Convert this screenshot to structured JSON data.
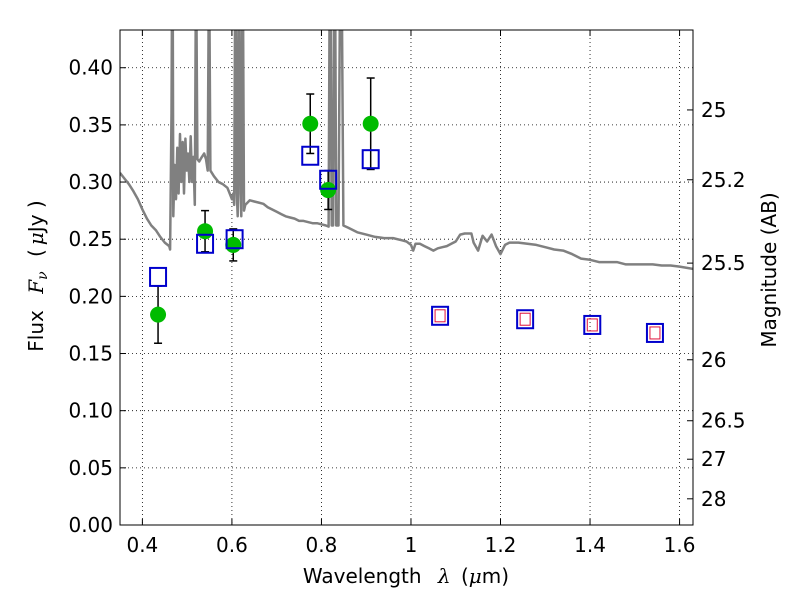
{
  "chart_data": {
    "type": "scatter",
    "title": "",
    "xlabel_prefix": "Wavelength",
    "xlabel_symbol": "λ",
    "xlabel_unit_open": "(",
    "xlabel_unit_mu": "μ",
    "xlabel_unit_rest": "m)",
    "ylabel_prefix": "Flux",
    "ylabel_symbol": "F",
    "ylabel_subscript": "ν",
    "ylabel_unit_open": "(",
    "ylabel_unit_mu": "μ",
    "ylabel_unit_rest": "Jy )",
    "y2label": "Magnitude (AB)",
    "xlim": [
      0.35,
      1.63
    ],
    "ylim": [
      0.0,
      0.433
    ],
    "grid": true,
    "x_ticks": [
      0.4,
      0.6,
      0.8,
      1.0,
      1.2,
      1.4,
      1.6
    ],
    "x_tick_labels": [
      "0.4",
      "0.6",
      "0.8",
      "1",
      "1.2",
      "1.4",
      "1.6"
    ],
    "y_ticks": [
      0.0,
      0.05,
      0.1,
      0.15,
      0.2,
      0.25,
      0.3,
      0.35,
      0.4
    ],
    "y_tick_labels": [
      "0.00",
      "0.05",
      "0.10",
      "0.15",
      "0.20",
      "0.25",
      "0.30",
      "0.35",
      "0.40"
    ],
    "y2_ticks": [
      25,
      25.2,
      25.5,
      26,
      26.5,
      27,
      28
    ],
    "y2_tick_labels": [
      "25",
      "25.2",
      "25.5",
      "26",
      "26.5",
      "27",
      "28"
    ],
    "colors": {
      "observed": "#00bb00",
      "model_box": "#0000cc",
      "model_inner": "#e0103a",
      "spectrum": "#808080"
    },
    "observed": [
      {
        "x": 0.435,
        "y": 0.184,
        "err": 0.025
      },
      {
        "x": 0.54,
        "y": 0.257,
        "err": 0.018
      },
      {
        "x": 0.603,
        "y": 0.245,
        "err": 0.014
      },
      {
        "x": 0.775,
        "y": 0.351,
        "err": 0.026
      },
      {
        "x": 0.815,
        "y": 0.293,
        "err": 0.017
      },
      {
        "x": 0.91,
        "y": 0.351,
        "err": 0.04
      }
    ],
    "model_photometry": [
      {
        "x": 0.435,
        "y": 0.217
      },
      {
        "x": 0.54,
        "y": 0.246
      },
      {
        "x": 0.606,
        "y": 0.25
      },
      {
        "x": 0.775,
        "y": 0.323
      },
      {
        "x": 0.815,
        "y": 0.302
      },
      {
        "x": 0.91,
        "y": 0.32
      },
      {
        "x": 1.065,
        "y": 0.183
      },
      {
        "x": 1.255,
        "y": 0.18
      },
      {
        "x": 1.405,
        "y": 0.175
      },
      {
        "x": 1.545,
        "y": 0.168
      }
    ],
    "model_inner_points": [
      {
        "x": 1.065,
        "y": 0.183
      },
      {
        "x": 1.255,
        "y": 0.18
      },
      {
        "x": 1.405,
        "y": 0.175
      },
      {
        "x": 1.545,
        "y": 0.168
      }
    ],
    "spectrum": [
      [
        0.35,
        0.308
      ],
      [
        0.36,
        0.303
      ],
      [
        0.37,
        0.298
      ],
      [
        0.38,
        0.292
      ],
      [
        0.39,
        0.285
      ],
      [
        0.4,
        0.276
      ],
      [
        0.41,
        0.268
      ],
      [
        0.42,
        0.262
      ],
      [
        0.43,
        0.258
      ],
      [
        0.44,
        0.252
      ],
      [
        0.45,
        0.247
      ],
      [
        0.46,
        0.244
      ],
      [
        0.462,
        0.241
      ],
      [
        0.465,
        0.36
      ],
      [
        0.466,
        0.44
      ],
      [
        0.468,
        0.44
      ],
      [
        0.469,
        0.27
      ],
      [
        0.472,
        0.315
      ],
      [
        0.475,
        0.285
      ],
      [
        0.478,
        0.33
      ],
      [
        0.481,
        0.29
      ],
      [
        0.484,
        0.342
      ],
      [
        0.487,
        0.3
      ],
      [
        0.49,
        0.335
      ],
      [
        0.493,
        0.29
      ],
      [
        0.496,
        0.338
      ],
      [
        0.499,
        0.31
      ],
      [
        0.502,
        0.325
      ],
      [
        0.505,
        0.3
      ],
      [
        0.508,
        0.34
      ],
      [
        0.511,
        0.3
      ],
      [
        0.514,
        0.322
      ],
      [
        0.517,
        0.28
      ],
      [
        0.519,
        0.44
      ],
      [
        0.521,
        0.44
      ],
      [
        0.523,
        0.32
      ],
      [
        0.527,
        0.318
      ],
      [
        0.533,
        0.322
      ],
      [
        0.538,
        0.325
      ],
      [
        0.542,
        0.32
      ],
      [
        0.546,
        0.31
      ],
      [
        0.548,
        0.44
      ],
      [
        0.55,
        0.44
      ],
      [
        0.552,
        0.31
      ],
      [
        0.56,
        0.305
      ],
      [
        0.57,
        0.3
      ],
      [
        0.58,
        0.298
      ],
      [
        0.59,
        0.295
      ],
      [
        0.595,
        0.29
      ],
      [
        0.6,
        0.285
      ],
      [
        0.603,
        0.29
      ],
      [
        0.605,
        0.28
      ],
      [
        0.607,
        0.44
      ],
      [
        0.609,
        0.44
      ],
      [
        0.611,
        0.29
      ],
      [
        0.613,
        0.27
      ],
      [
        0.615,
        0.44
      ],
      [
        0.617,
        0.44
      ],
      [
        0.619,
        0.29
      ],
      [
        0.621,
        0.27
      ],
      [
        0.623,
        0.44
      ],
      [
        0.625,
        0.44
      ],
      [
        0.627,
        0.275
      ],
      [
        0.63,
        0.28
      ],
      [
        0.64,
        0.284
      ],
      [
        0.65,
        0.283
      ],
      [
        0.66,
        0.282
      ],
      [
        0.67,
        0.281
      ],
      [
        0.68,
        0.278
      ],
      [
        0.69,
        0.276
      ],
      [
        0.7,
        0.274
      ],
      [
        0.71,
        0.272
      ],
      [
        0.72,
        0.27
      ],
      [
        0.73,
        0.269
      ],
      [
        0.74,
        0.268
      ],
      [
        0.75,
        0.266
      ],
      [
        0.76,
        0.266
      ],
      [
        0.77,
        0.265
      ],
      [
        0.78,
        0.264
      ],
      [
        0.79,
        0.264
      ],
      [
        0.8,
        0.263
      ],
      [
        0.81,
        0.262
      ],
      [
        0.816,
        0.261
      ],
      [
        0.818,
        0.44
      ],
      [
        0.821,
        0.44
      ],
      [
        0.823,
        0.262
      ],
      [
        0.826,
        0.262
      ],
      [
        0.828,
        0.44
      ],
      [
        0.831,
        0.44
      ],
      [
        0.833,
        0.262
      ],
      [
        0.838,
        0.262
      ],
      [
        0.841,
        0.44
      ],
      [
        0.846,
        0.44
      ],
      [
        0.849,
        0.262
      ],
      [
        0.86,
        0.26
      ],
      [
        0.88,
        0.256
      ],
      [
        0.9,
        0.254
      ],
      [
        0.92,
        0.252
      ],
      [
        0.94,
        0.251
      ],
      [
        0.96,
        0.251
      ],
      [
        0.98,
        0.249
      ],
      [
        0.99,
        0.248
      ],
      [
        1.0,
        0.245
      ],
      [
        1.005,
        0.24
      ],
      [
        1.01,
        0.246
      ],
      [
        1.02,
        0.246
      ],
      [
        1.03,
        0.244
      ],
      [
        1.04,
        0.242
      ],
      [
        1.05,
        0.24
      ],
      [
        1.06,
        0.242
      ],
      [
        1.07,
        0.243
      ],
      [
        1.08,
        0.244
      ],
      [
        1.09,
        0.246
      ],
      [
        1.1,
        0.248
      ],
      [
        1.11,
        0.254
      ],
      [
        1.12,
        0.255
      ],
      [
        1.135,
        0.255
      ],
      [
        1.14,
        0.247
      ],
      [
        1.15,
        0.24
      ],
      [
        1.16,
        0.253
      ],
      [
        1.17,
        0.248
      ],
      [
        1.18,
        0.254
      ],
      [
        1.19,
        0.244
      ],
      [
        1.2,
        0.237
      ],
      [
        1.21,
        0.245
      ],
      [
        1.22,
        0.247
      ],
      [
        1.24,
        0.247
      ],
      [
        1.26,
        0.246
      ],
      [
        1.28,
        0.245
      ],
      [
        1.3,
        0.243
      ],
      [
        1.32,
        0.241
      ],
      [
        1.34,
        0.24
      ],
      [
        1.36,
        0.237
      ],
      [
        1.38,
        0.233
      ],
      [
        1.4,
        0.232
      ],
      [
        1.42,
        0.23
      ],
      [
        1.44,
        0.23
      ],
      [
        1.46,
        0.23
      ],
      [
        1.48,
        0.228
      ],
      [
        1.5,
        0.228
      ],
      [
        1.52,
        0.228
      ],
      [
        1.54,
        0.228
      ],
      [
        1.56,
        0.227
      ],
      [
        1.58,
        0.227
      ],
      [
        1.6,
        0.226
      ],
      [
        1.63,
        0.224
      ]
    ]
  }
}
